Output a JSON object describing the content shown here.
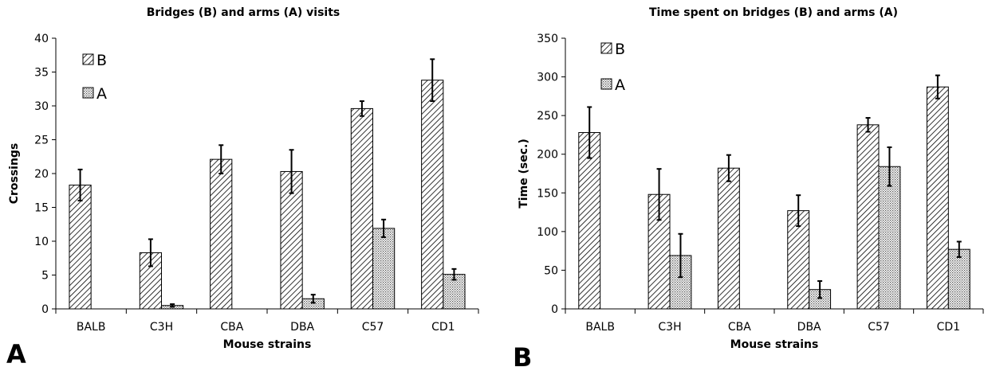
{
  "chart_data": [
    {
      "type": "bar",
      "panel": "A",
      "title": "Bridges (B) and arms (A) visits",
      "xlabel": "Mouse strains",
      "ylabel": "Crossings",
      "ylim": [
        0,
        40
      ],
      "yticks": [
        0,
        5,
        10,
        15,
        20,
        25,
        30,
        35,
        40
      ],
      "categories": [
        "BALB",
        "C3H",
        "CBA",
        "DBA",
        "C57",
        "CD1"
      ],
      "legend_position": "top-left",
      "series": [
        {
          "name": "B",
          "pattern": "diagonal-hatch",
          "values": [
            18.3,
            8.3,
            22.1,
            20.3,
            29.6,
            33.8
          ],
          "errors": [
            2.3,
            2.0,
            2.1,
            3.2,
            1.1,
            3.1
          ]
        },
        {
          "name": "A",
          "pattern": "dotted",
          "values": [
            0,
            0.5,
            0,
            1.5,
            11.9,
            5.1
          ],
          "errors": [
            0,
            0.2,
            0,
            0.6,
            1.3,
            0.8
          ]
        }
      ]
    },
    {
      "type": "bar",
      "panel": "B",
      "title": "Time spent on bridges (B) and arms (A)",
      "xlabel": "Mouse strains",
      "ylabel": "Time (sec.)",
      "ylim": [
        0,
        350
      ],
      "yticks": [
        0,
        50,
        100,
        150,
        200,
        250,
        300,
        350
      ],
      "categories": [
        "BALB",
        "C3H",
        "CBA",
        "DBA",
        "C57",
        "CD1"
      ],
      "legend_position": "top-left",
      "series": [
        {
          "name": "B",
          "pattern": "diagonal-hatch",
          "values": [
            228,
            148,
            182,
            127,
            238,
            287
          ],
          "errors": [
            33,
            33,
            17,
            20,
            9,
            15
          ]
        },
        {
          "name": "A",
          "pattern": "dotted",
          "values": [
            0,
            69,
            0,
            25,
            184,
            77
          ],
          "errors": [
            0,
            28,
            0,
            11,
            25,
            10
          ]
        }
      ]
    }
  ]
}
